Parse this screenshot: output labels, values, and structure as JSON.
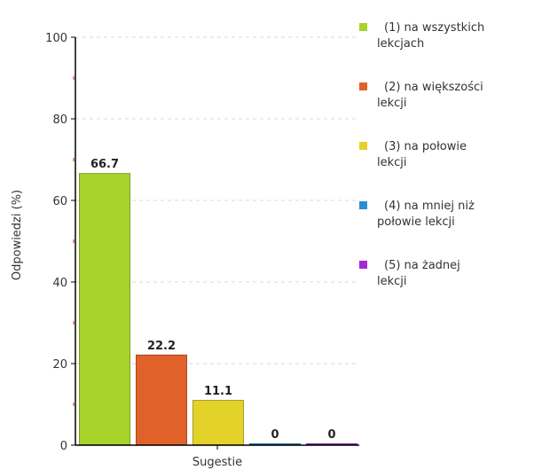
{
  "chart_data": {
    "type": "bar",
    "xlabel": "Sugestie",
    "ylabel": "Odpowiedzi (%)",
    "ylim": [
      0,
      100
    ],
    "yticks": [
      0,
      20,
      40,
      60,
      80,
      100
    ],
    "grid": true,
    "legend_position": "right",
    "series": [
      {
        "name": "(1) na wszystkich lekcjach",
        "value": 66.7,
        "label": "66.7",
        "color": "#a8d32a",
        "legend_lines": [
          "(1) na wszystkich",
          "lekcjach"
        ]
      },
      {
        "name": "(2) na większości lekcji",
        "value": 22.2,
        "label": "22.2",
        "color": "#e0622a",
        "legend_lines": [
          "(2) na większości",
          "lekcji"
        ]
      },
      {
        "name": "(3) na połowie lekcji",
        "value": 11.1,
        "label": "11.1",
        "color": "#e2d22a",
        "legend_lines": [
          "(3) na połowie",
          "lekcji"
        ]
      },
      {
        "name": "(4) na mniej niż połowie lekcji",
        "value": 0,
        "label": "0",
        "color": "#2a8ed3",
        "legend_lines": [
          "(4) na mniej niż",
          "połowie lekcji"
        ]
      },
      {
        "name": "(5) na żadnej lekcji",
        "value": 0,
        "label": "0",
        "color": "#a52ad3",
        "legend_lines": [
          "(5) na żadnej",
          "lekcji"
        ]
      }
    ]
  }
}
